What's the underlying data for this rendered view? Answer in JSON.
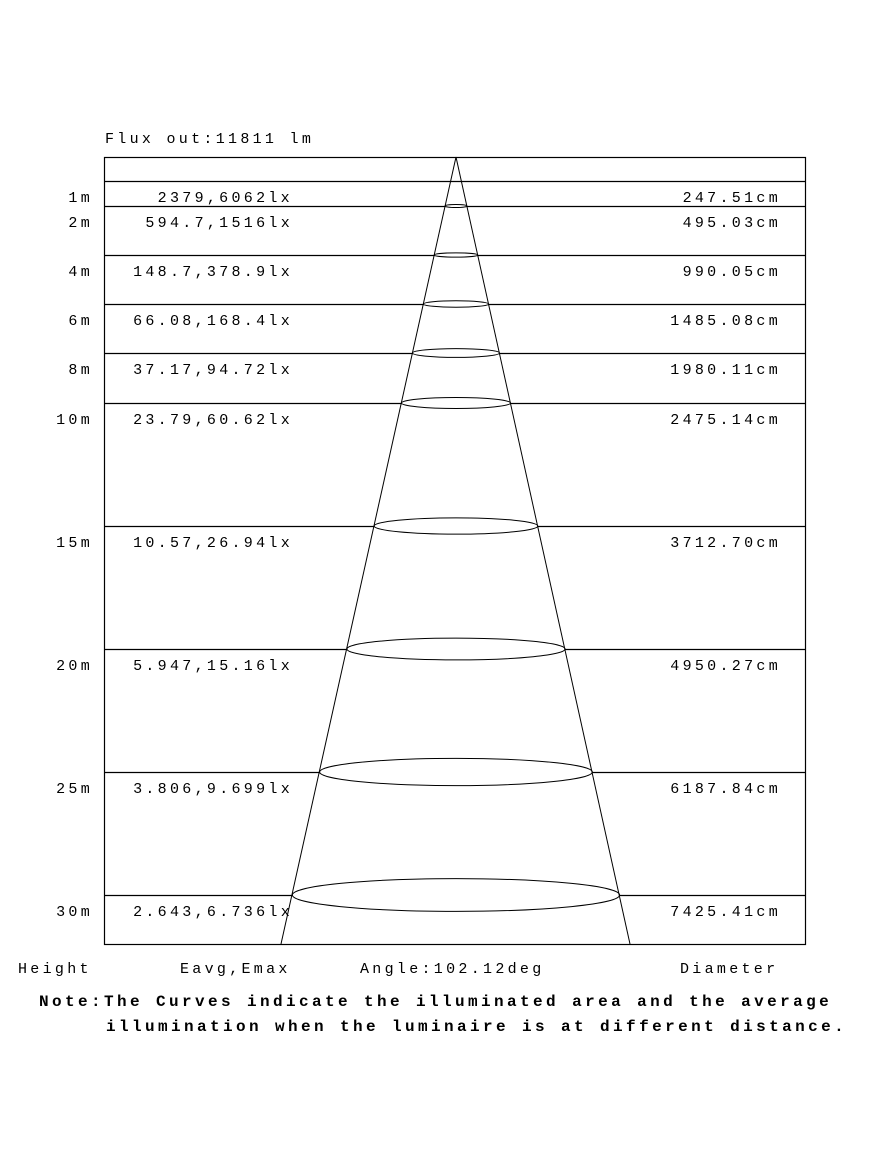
{
  "header": {
    "flux": "Flux out:11811 lm"
  },
  "rows": [
    {
      "height": "1m",
      "illum": "2379,6062lx",
      "diameter": "247.51cm"
    },
    {
      "height": "2m",
      "illum": "594.7,1516lx",
      "diameter": "495.03cm"
    },
    {
      "height": "4m",
      "illum": "148.7,378.9lx",
      "diameter": "990.05cm"
    },
    {
      "height": "6m",
      "illum": "66.08,168.4lx",
      "diameter": "1485.08cm"
    },
    {
      "height": "8m",
      "illum": "37.17,94.72lx",
      "diameter": "1980.11cm"
    },
    {
      "height": "10m",
      "illum": "23.79,60.62lx",
      "diameter": "2475.14cm"
    },
    {
      "height": "15m",
      "illum": "10.57,26.94lx",
      "diameter": "3712.70cm"
    },
    {
      "height": "20m",
      "illum": "5.947,15.16lx",
      "diameter": "4950.27cm"
    },
    {
      "height": "25m",
      "illum": "3.806,9.699lx",
      "diameter": "6187.84cm"
    },
    {
      "height": "30m",
      "illum": "2.643,6.736lx",
      "diameter": "7425.41cm"
    }
  ],
  "footer": {
    "height_label": "Height",
    "illum_label": "Eavg,Emax",
    "angle": "Angle:102.12deg",
    "diameter_label": "Diameter"
  },
  "note": {
    "line1": "Note:The Curves indicate the illuminated area and the average",
    "line2": "illumination when the luminaire is at different distance."
  }
}
